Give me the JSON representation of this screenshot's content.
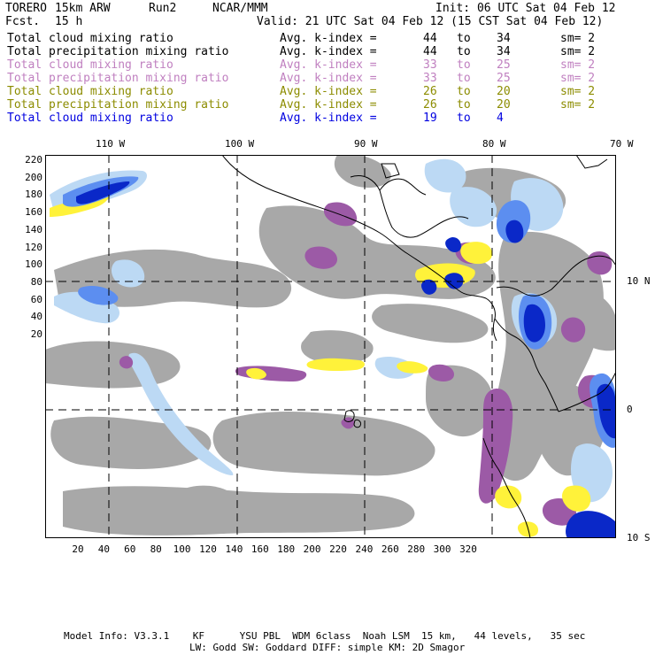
{
  "header": {
    "model": "TORERO",
    "grid": "15km ARW",
    "run": "Run2",
    "org": "NCAR/MMM",
    "init": "Init: 06 UTC Sat 04 Feb 12",
    "fcst_label": "Fcst.",
    "fcst_value": "15 h",
    "valid": "Valid: 21 UTC Sat 04 Feb 12 (15 CST Sat 04 Feb 12)"
  },
  "legend": [
    {
      "field": "Total cloud mixing ratio",
      "k_label": "Avg. k-index =",
      "k_from": "44",
      "to": "to",
      "k_to": "34",
      "sm": "sm= 2",
      "color": "#000000"
    },
    {
      "field": "Total precipitation mixing ratio",
      "k_label": "Avg. k-index =",
      "k_from": "44",
      "to": "to",
      "k_to": "34",
      "sm": "sm= 2",
      "color": "#000000"
    },
    {
      "field": "Total cloud mixing ratio",
      "k_label": "Avg. k-index =",
      "k_from": "33",
      "to": "to",
      "k_to": "25",
      "sm": "sm= 2",
      "color": "#c080c0"
    },
    {
      "field": "Total precipitation mixing ratio",
      "k_label": "Avg. k-index =",
      "k_from": "33",
      "to": "to",
      "k_to": "25",
      "sm": "sm= 2",
      "color": "#c080c0"
    },
    {
      "field": "Total cloud mixing ratio",
      "k_label": "Avg. k-index =",
      "k_from": "26",
      "to": "to",
      "k_to": "20",
      "sm": "sm= 2",
      "color": "#8c8c00"
    },
    {
      "field": "Total precipitation mixing ratio",
      "k_label": "Avg. k-index =",
      "k_from": "26",
      "to": "to",
      "k_to": "20",
      "sm": "sm= 2",
      "color": "#8c8c00"
    },
    {
      "field": "Total cloud mixing ratio",
      "k_label": "Avg. k-index =",
      "k_from": "19",
      "to": "to",
      "k_to": "4",
      "sm": "",
      "color": "#0000e0"
    }
  ],
  "longitude_labels": [
    "110 W",
    "100 W",
    "90 W",
    "80 W",
    "70 W"
  ],
  "latitude_labels": [
    "10 N",
    "0",
    "10 S"
  ],
  "y_ticks": [
    "220",
    "200",
    "180",
    "160",
    "140",
    "120",
    "100",
    "80",
    "60",
    "40",
    "20"
  ],
  "x_ticks": [
    "20",
    "40",
    "60",
    "80",
    "100",
    "120",
    "140",
    "160",
    "180",
    "200",
    "220",
    "240",
    "260",
    "280",
    "300",
    "320"
  ],
  "footer": {
    "line1": "Model Info: V3.3.1    KF      YSU PBL  WDM 6class  Noah LSM  15 km,   44 levels,   35 sec",
    "line2": "LW: Godd SW: Goddard DIFF: simple KM: 2D Smagor"
  },
  "colors": {
    "gray_cloud": "#a8a8a8",
    "purple": "#9c5aa6",
    "yellow": "#fff23a",
    "light_blue": "#bcd9f4",
    "mid_blue": "#5c8ef0",
    "dark_blue": "#0a28c8"
  }
}
